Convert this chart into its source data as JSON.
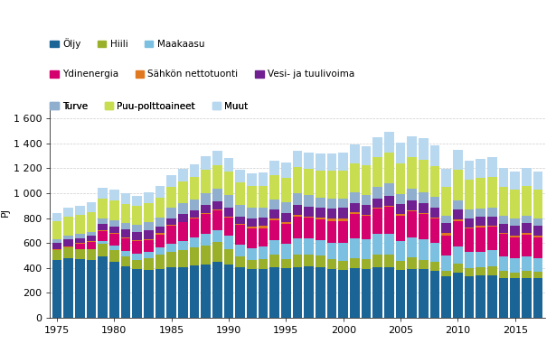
{
  "ylabel": "PJ",
  "years": [
    1975,
    1976,
    1977,
    1978,
    1979,
    1980,
    1981,
    1982,
    1983,
    1984,
    1985,
    1986,
    1987,
    1988,
    1989,
    1990,
    1991,
    1992,
    1993,
    1994,
    1995,
    1996,
    1997,
    1998,
    1999,
    2000,
    2001,
    2002,
    2003,
    2004,
    2005,
    2006,
    2007,
    2008,
    2009,
    2010,
    2011,
    2012,
    2013,
    2014,
    2015,
    2016,
    2017
  ],
  "series": {
    "Öljy": [
      460,
      478,
      468,
      465,
      490,
      450,
      410,
      392,
      385,
      390,
      402,
      408,
      420,
      428,
      448,
      428,
      408,
      390,
      392,
      408,
      400,
      405,
      410,
      408,
      392,
      385,
      396,
      392,
      404,
      404,
      384,
      392,
      390,
      375,
      332,
      360,
      335,
      338,
      342,
      320,
      318,
      320,
      318
    ],
    "Hiili": [
      80,
      85,
      82,
      85,
      105,
      95,
      80,
      70,
      90,
      115,
      128,
      138,
      142,
      152,
      157,
      124,
      85,
      70,
      75,
      100,
      70,
      105,
      100,
      90,
      75,
      70,
      85,
      80,
      105,
      100,
      70,
      90,
      75,
      70,
      47,
      75,
      65,
      65,
      70,
      55,
      47,
      55,
      52
    ],
    "Maakaasu": [
      0,
      0,
      0,
      0,
      22,
      37,
      47,
      52,
      55,
      62,
      65,
      70,
      80,
      90,
      100,
      105,
      95,
      100,
      105,
      115,
      120,
      128,
      128,
      128,
      134,
      143,
      153,
      157,
      167,
      172,
      163,
      163,
      167,
      153,
      120,
      138,
      128,
      128,
      134,
      120,
      110,
      114,
      105
    ],
    "Ydinenergia": [
      0,
      0,
      41,
      55,
      80,
      90,
      100,
      100,
      90,
      100,
      143,
      148,
      157,
      163,
      157,
      148,
      157,
      157,
      148,
      157,
      163,
      172,
      163,
      163,
      172,
      177,
      201,
      186,
      201,
      215,
      201,
      207,
      201,
      197,
      163,
      201,
      186,
      192,
      186,
      177,
      172,
      177,
      172
    ],
    "Sähkön nettotuonti": [
      7,
      7,
      7,
      7,
      7,
      7,
      7,
      12,
      12,
      12,
      7,
      7,
      7,
      7,
      7,
      7,
      7,
      12,
      17,
      17,
      12,
      12,
      12,
      17,
      26,
      22,
      12,
      12,
      7,
      7,
      12,
      12,
      7,
      12,
      17,
      17,
      12,
      12,
      7,
      7,
      12,
      12,
      12
    ],
    "Vesi- ja tuulivoima": [
      55,
      62,
      41,
      47,
      52,
      55,
      62,
      65,
      70,
      55,
      55,
      62,
      55,
      62,
      65,
      70,
      62,
      70,
      65,
      70,
      73,
      80,
      80,
      75,
      80,
      85,
      75,
      80,
      75,
      80,
      80,
      75,
      80,
      75,
      80,
      75,
      70,
      73,
      75,
      75,
      80,
      80,
      80
    ],
    "Turve": [
      26,
      29,
      32,
      32,
      41,
      47,
      52,
      55,
      62,
      70,
      80,
      85,
      90,
      100,
      105,
      100,
      90,
      85,
      80,
      85,
      87,
      100,
      90,
      85,
      80,
      75,
      85,
      80,
      90,
      100,
      80,
      95,
      90,
      85,
      62,
      75,
      70,
      70,
      70,
      62,
      58,
      62,
      55
    ],
    "Puu-polttoaineet": [
      148,
      152,
      155,
      158,
      162,
      158,
      155,
      152,
      155,
      162,
      170,
      175,
      178,
      183,
      188,
      188,
      181,
      175,
      178,
      191,
      198,
      209,
      212,
      216,
      222,
      226,
      232,
      236,
      242,
      249,
      249,
      252,
      257,
      252,
      232,
      246,
      242,
      242,
      244,
      236,
      232,
      236,
      234
    ],
    "Muut": [
      62,
      70,
      73,
      75,
      85,
      90,
      85,
      80,
      85,
      90,
      95,
      100,
      105,
      110,
      114,
      110,
      105,
      102,
      105,
      114,
      120,
      128,
      131,
      134,
      138,
      143,
      148,
      153,
      160,
      163,
      163,
      167,
      172,
      163,
      143,
      157,
      153,
      157,
      160,
      148,
      145,
      148,
      145
    ]
  },
  "colors": {
    "Öljy": "#1a6496",
    "Hiili": "#9aaf2a",
    "Maakaasu": "#7bc0e0",
    "Ydinenergia": "#d4006e",
    "Sähkön nettotuonti": "#e07820",
    "Vesi- ja tuulivoima": "#702090",
    "Turve": "#90aece",
    "Puu-polttoaineet": "#c8de50",
    "Muut": "#b8d8f0"
  },
  "ylim": [
    0,
    1700
  ],
  "yticks": [
    0,
    200,
    400,
    600,
    800,
    1000,
    1200,
    1400,
    1600
  ],
  "xticks": [
    1975,
    1980,
    1985,
    1990,
    1995,
    2000,
    2005,
    2010,
    2015
  ],
  "legend_row1": [
    "Öljy",
    "Hiili",
    "Maakaasu"
  ],
  "legend_row2": [
    "Ydinenergia",
    "Sähkön nettotuonti",
    "Vesi- ja tuulivoima"
  ],
  "legend_row3": [
    "Turve",
    "Puu-polttoaineet",
    "Muut"
  ]
}
